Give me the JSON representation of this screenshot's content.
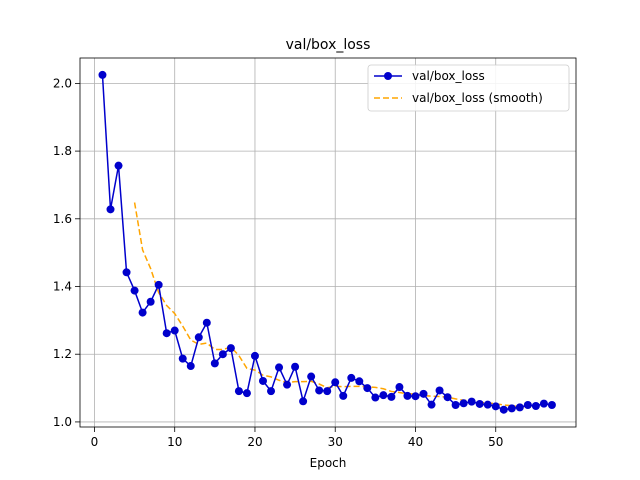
{
  "chart_data": {
    "type": "line",
    "title": "val/box_loss",
    "xlabel": "Epoch",
    "ylabel": "",
    "xlim": [
      -1.8,
      60.0
    ],
    "ylim": [
      0.985,
      2.075
    ],
    "x_ticks": [
      0,
      10,
      20,
      30,
      40,
      50
    ],
    "y_ticks": [
      1.0,
      1.2,
      1.4,
      1.6,
      1.8,
      2.0
    ],
    "x_tick_labels": [
      "0",
      "10",
      "20",
      "30",
      "40",
      "50"
    ],
    "y_tick_labels": [
      "1.0",
      "1.2",
      "1.4",
      "1.6",
      "1.8",
      "2.0"
    ],
    "grid": true,
    "legend_position": "top-right",
    "series": [
      {
        "name": "val/box_loss",
        "color": "#0000cc",
        "style": "solid-markers",
        "x": [
          1,
          2,
          3,
          4,
          5,
          6,
          7,
          8,
          9,
          10,
          11,
          12,
          13,
          14,
          15,
          16,
          17,
          18,
          19,
          20,
          21,
          22,
          23,
          24,
          25,
          26,
          27,
          28,
          29,
          30,
          31,
          32,
          33,
          34,
          35,
          36,
          37,
          38,
          39,
          40,
          41,
          42,
          43,
          44,
          45,
          46,
          47,
          48,
          49,
          50,
          51,
          52,
          53,
          54,
          55,
          56,
          57
        ],
        "values": [
          2.025,
          1.628,
          1.757,
          1.442,
          1.388,
          1.323,
          1.355,
          1.405,
          1.262,
          1.27,
          1.187,
          1.165,
          1.25,
          1.293,
          1.173,
          1.2,
          1.218,
          1.091,
          1.085,
          1.195,
          1.121,
          1.091,
          1.161,
          1.11,
          1.163,
          1.061,
          1.134,
          1.093,
          1.091,
          1.117,
          1.077,
          1.13,
          1.12,
          1.1,
          1.072,
          1.079,
          1.074,
          1.103,
          1.077,
          1.076,
          1.083,
          1.051,
          1.093,
          1.073,
          1.05,
          1.055,
          1.06,
          1.053,
          1.051,
          1.046,
          1.036,
          1.04,
          1.043,
          1.05,
          1.047,
          1.054,
          1.05
        ]
      },
      {
        "name": "val/box_loss (smooth)",
        "color": "#ffa500",
        "style": "dashed",
        "x": [
          5,
          6,
          7,
          8,
          9,
          10,
          11,
          12,
          13,
          14,
          15,
          16,
          17,
          18,
          19,
          20,
          21,
          22,
          23,
          24,
          25,
          26,
          27,
          28,
          29,
          30,
          31,
          32,
          33,
          34,
          35,
          36,
          37,
          38,
          39,
          40,
          41,
          42,
          43,
          44,
          45,
          46,
          47,
          48,
          49,
          50,
          51,
          52,
          53,
          54,
          55,
          56,
          57
        ],
        "values": [
          1.648,
          1.508,
          1.453,
          1.382,
          1.344,
          1.32,
          1.283,
          1.242,
          1.229,
          1.233,
          1.214,
          1.214,
          1.221,
          1.196,
          1.158,
          1.153,
          1.138,
          1.133,
          1.123,
          1.116,
          1.119,
          1.119,
          1.12,
          1.112,
          1.101,
          1.106,
          1.104,
          1.105,
          1.105,
          1.104,
          1.102,
          1.098,
          1.09,
          1.087,
          1.083,
          1.083,
          1.078,
          1.076,
          1.075,
          1.073,
          1.068,
          1.064,
          1.063,
          1.058,
          1.056,
          1.054,
          1.05,
          1.048,
          1.045,
          1.046,
          1.048,
          1.048,
          1.049
        ]
      }
    ]
  }
}
